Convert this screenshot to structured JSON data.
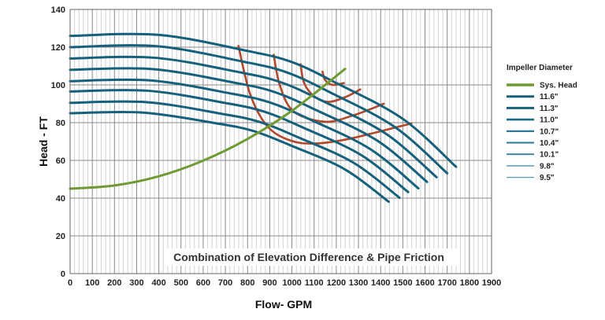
{
  "chart_data": {
    "type": "line",
    "title": "",
    "xlabel": "Flow- GPM",
    "ylabel": "Head - FT",
    "xlim": [
      0,
      1900
    ],
    "ylim": [
      0,
      140
    ],
    "xticks": [
      0,
      100,
      200,
      300,
      400,
      500,
      600,
      700,
      800,
      900,
      1000,
      1100,
      1200,
      1300,
      1400,
      1500,
      1600,
      1700,
      1800,
      1900
    ],
    "yticks": [
      0,
      20,
      40,
      60,
      80,
      100,
      120,
      140
    ],
    "grid": {
      "major_x": 100,
      "minor_x": 20,
      "major_y": 20
    },
    "legend": {
      "title": "Impeller Diameter",
      "placement": "right"
    },
    "annotation": "Combination of Elevation Difference & Pipe Friction",
    "colors": {
      "pump": "#15617c",
      "system": "#6f9a34",
      "iso": "#b3472a",
      "grid_major": "#8a8a8a",
      "grid_minor": "#d2d2d2"
    },
    "series": [
      {
        "name": "Sys. Head",
        "kind": "system",
        "x": [
          0,
          200,
          400,
          600,
          800,
          1000,
          1240
        ],
        "y": [
          45,
          46.7,
          51.6,
          59.9,
          71.4,
          86.3,
          108.5
        ]
      },
      {
        "name": "11.6\"",
        "kind": "pump",
        "x": [
          0,
          400,
          800,
          1000,
          1200,
          1500,
          1740
        ],
        "y": [
          126,
          126.5,
          118,
          112.1,
          101,
          82,
          56.6
        ]
      },
      {
        "name": "11.3\"",
        "kind": "pump",
        "x": [
          0,
          391,
          782,
          978,
          1173,
          1465,
          1700
        ],
        "y": [
          120,
          120.5,
          112.3,
          106.6,
          96,
          77.6,
          53.2
        ]
      },
      {
        "name": "11.0\"",
        "kind": "pump",
        "x": [
          0,
          380,
          760,
          950,
          1140,
          1424,
          1652
        ],
        "y": [
          114,
          114.4,
          106.8,
          101.4,
          91.4,
          74.1,
          51.1
        ]
      },
      {
        "name": "10.7\"",
        "kind": "pump",
        "x": [
          0,
          370,
          740,
          925,
          1110,
          1387,
          1609
        ],
        "y": [
          108,
          108.4,
          101.2,
          96.1,
          86.6,
          70.3,
          48.6
        ]
      },
      {
        "name": "10.4\"",
        "kind": "pump",
        "x": [
          0,
          361,
          722,
          903,
          1083,
          1353,
          1570
        ],
        "y": [
          102,
          102.4,
          95.5,
          90.6,
          81.6,
          66,
          45.2
        ]
      },
      {
        "name": "10.1\"",
        "kind": "pump",
        "x": [
          0,
          351,
          701,
          876,
          1052,
          1314,
          1524
        ],
        "y": [
          96.5,
          96.9,
          90.4,
          85.8,
          77.3,
          62.7,
          43.2
        ]
      },
      {
        "name": "9.8\"",
        "kind": "pump",
        "x": [
          0,
          342,
          683,
          854,
          1025,
          1280,
          1485
        ],
        "y": [
          90.5,
          90.9,
          84.7,
          80.4,
          72.4,
          58.6,
          40.2
        ]
      },
      {
        "name": "9.5\"",
        "kind": "pump",
        "x": [
          0,
          330,
          661,
          826,
          991,
          1238,
          1436
        ],
        "y": [
          85,
          85.3,
          79.6,
          75.6,
          68.1,
          55.3,
          38.1
        ]
      }
    ],
    "iso_curves": [
      {
        "x": [
          759,
          812,
          890,
          996,
          1113,
          1269,
          1539
        ],
        "y": [
          120.7,
          95,
          78,
          70.4,
          69,
          71.7,
          79.6
        ]
      },
      {
        "x": [
          918,
          945,
          1007,
          1149,
          1280,
          1414
        ],
        "y": [
          116,
          100,
          86,
          80.5,
          84,
          90
        ]
      },
      {
        "x": [
          1039,
          1055,
          1100,
          1163,
          1240,
          1308
        ],
        "y": [
          111,
          101,
          94,
          91,
          93.5,
          97.6
        ]
      },
      {
        "x": [
          1138,
          1150,
          1184,
          1234
        ],
        "y": [
          107,
          102.5,
          100,
          101
        ]
      }
    ]
  }
}
